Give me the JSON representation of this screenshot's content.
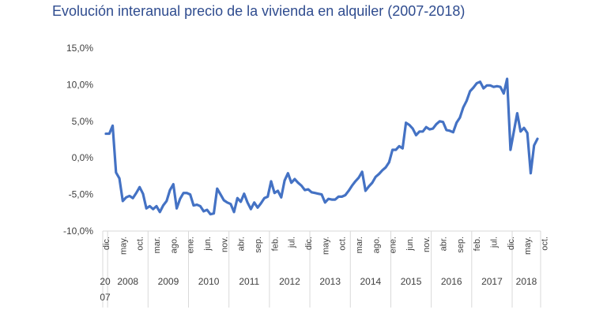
{
  "chart_data": {
    "type": "line",
    "title": "Evolución interanual precio de la vivienda en alquiler (2007-2018)",
    "ylim": [
      -10,
      15
    ],
    "yticks": [
      "15,0%",
      "10,0%",
      "5,0%",
      "0,0%",
      "-5,0%",
      "-10,0%"
    ],
    "grid": false,
    "legend": "none",
    "line_color": "#4472c4",
    "x_tick_labels": [
      "dic.",
      "may.",
      "oct.",
      "mar.",
      "ago.",
      "ene.",
      "jun.",
      "nov.",
      "abr.",
      "sep.",
      "feb.",
      "jul.",
      "dic.",
      "may.",
      "oct.",
      "mar.",
      "ago.",
      "ene.",
      "jun.",
      "nov.",
      "abr.",
      "sep.",
      "feb.",
      "jul.",
      "dic.",
      "may.",
      "oct."
    ],
    "year_labels": [
      "20\n07",
      "2008",
      "2009",
      "2010",
      "2011",
      "2012",
      "2013",
      "2014",
      "2015",
      "2016",
      "2017",
      "2018"
    ],
    "x_start": "2007-12",
    "x_end": "2018-10",
    "series": [
      {
        "values": [
          3.3,
          3.3,
          4.4,
          -2.0,
          -2.8,
          -5.9,
          -5.4,
          -5.2,
          -5.5,
          -4.8,
          -4.0,
          -4.9,
          -6.9,
          -6.6,
          -7.0,
          -6.6,
          -7.4,
          -6.5,
          -5.9,
          -4.4,
          -3.6,
          -6.9,
          -5.6,
          -4.8,
          -4.8,
          -5.0,
          -6.5,
          -6.4,
          -6.6,
          -7.3,
          -7.1,
          -7.7,
          -7.6,
          -4.2,
          -5.0,
          -5.8,
          -6.1,
          -6.3,
          -7.4,
          -5.5,
          -6.0,
          -4.9,
          -6.1,
          -7.0,
          -6.1,
          -6.8,
          -6.2,
          -5.5,
          -5.3,
          -3.2,
          -4.8,
          -4.5,
          -5.4,
          -3.1,
          -2.1,
          -3.4,
          -2.9,
          -3.4,
          -3.8,
          -4.4,
          -4.3,
          -4.7,
          -4.8,
          -4.9,
          -5.0,
          -6.1,
          -5.6,
          -5.7,
          -5.7,
          -5.3,
          -5.3,
          -5.1,
          -4.5,
          -3.8,
          -3.2,
          -2.7,
          -1.9,
          -4.5,
          -3.9,
          -3.4,
          -2.6,
          -2.2,
          -1.7,
          -1.3,
          -0.6,
          1.1,
          1.1,
          1.6,
          1.3,
          4.8,
          4.5,
          4.0,
          3.1,
          3.6,
          3.6,
          4.2,
          3.9,
          4.0,
          4.6,
          5.0,
          4.9,
          3.8,
          3.7,
          3.5,
          4.8,
          5.5,
          6.9,
          7.8,
          9.1,
          9.6,
          10.2,
          10.4,
          9.5,
          9.9,
          9.9,
          9.7,
          9.8,
          9.7,
          8.8,
          10.8,
          1.1,
          3.6,
          6.1,
          3.6,
          4.1,
          3.4,
          -2.1,
          1.7,
          2.6
        ]
      }
    ]
  }
}
